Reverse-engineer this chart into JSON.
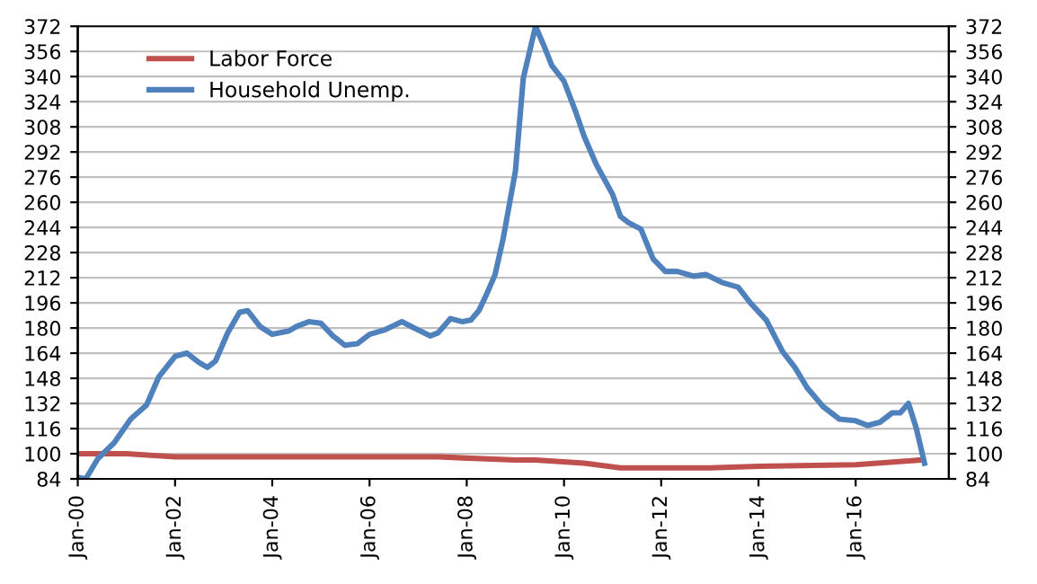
{
  "chart_data": {
    "type": "line",
    "xlim": [
      "2000-01",
      "2017-12"
    ],
    "xticks": [
      {
        "value": "2000-01",
        "label": "Jan-00"
      },
      {
        "value": "2002-01",
        "label": "Jan-02"
      },
      {
        "value": "2004-01",
        "label": "Jan-04"
      },
      {
        "value": "2006-01",
        "label": "Jan-06"
      },
      {
        "value": "2008-01",
        "label": "Jan-08"
      },
      {
        "value": "2010-01",
        "label": "Jan-10"
      },
      {
        "value": "2012-01",
        "label": "Jan-12"
      },
      {
        "value": "2014-01",
        "label": "Jan-14"
      },
      {
        "value": "2016-01",
        "label": "Jan-16"
      }
    ],
    "ylim": [
      84,
      372
    ],
    "yticks": [
      84,
      100,
      116,
      132,
      148,
      164,
      180,
      196,
      212,
      228,
      244,
      260,
      276,
      292,
      308,
      324,
      340,
      356,
      372
    ],
    "y2lim": [
      84,
      372
    ],
    "y2ticks": [
      84,
      100,
      116,
      132,
      148,
      164,
      180,
      196,
      212,
      228,
      244,
      260,
      276,
      292,
      308,
      324,
      340,
      356,
      372
    ],
    "grid": "y",
    "legend": "top left",
    "line_style": "solid",
    "marker": "none",
    "series": [
      {
        "name": "Labor Force",
        "color": "#c0504d",
        "x": [
          "2000-01",
          "2001-01",
          "2002-01",
          "2004-01",
          "2006-01",
          "2007-06",
          "2009-01",
          "2009-06",
          "2010-06",
          "2011-03",
          "2013-01",
          "2014-01",
          "2016-01",
          "2017-05"
        ],
        "values": [
          100,
          100,
          98,
          98,
          98,
          98,
          96,
          96,
          94,
          91,
          91,
          92,
          93,
          96
        ]
      },
      {
        "name": "Household Unemp.",
        "color": "#4f81bd",
        "x": [
          "2000-01",
          "2000-03",
          "2000-06",
          "2000-10",
          "2001-02",
          "2001-06",
          "2001-09",
          "2002-01",
          "2002-04",
          "2002-07",
          "2002-09",
          "2002-11",
          "2003-02",
          "2003-05",
          "2003-07",
          "2003-10",
          "2004-01",
          "2004-05",
          "2004-07",
          "2004-10",
          "2005-01",
          "2005-04",
          "2005-07",
          "2005-10",
          "2006-01",
          "2006-05",
          "2006-09",
          "2006-12",
          "2007-04",
          "2007-06",
          "2007-09",
          "2007-12",
          "2008-02",
          "2008-04",
          "2008-06",
          "2008-08",
          "2008-10",
          "2009-01",
          "2009-03",
          "2009-06",
          "2009-08",
          "2009-10",
          "2010-01",
          "2010-04",
          "2010-06",
          "2010-09",
          "2011-01",
          "2011-03",
          "2011-05",
          "2011-08",
          "2011-11",
          "2012-02",
          "2012-05",
          "2012-09",
          "2012-12",
          "2013-04",
          "2013-08",
          "2013-11",
          "2014-03",
          "2014-07",
          "2014-10",
          "2015-01",
          "2015-05",
          "2015-09",
          "2016-01",
          "2016-04",
          "2016-07",
          "2016-10",
          "2016-12",
          "2017-02",
          "2017-04",
          "2017-06"
        ],
        "values": [
          85,
          84,
          97,
          107,
          122,
          131,
          149,
          162,
          164,
          158,
          155,
          159,
          177,
          190,
          191,
          181,
          176,
          178,
          181,
          184,
          183,
          175,
          169,
          170,
          176,
          179,
          184,
          180,
          175,
          177,
          186,
          184,
          185,
          191,
          202,
          214,
          237,
          280,
          339,
          372,
          360,
          347,
          337,
          317,
          302,
          284,
          265,
          251,
          247,
          243,
          224,
          216,
          216,
          213,
          214,
          209,
          206,
          196,
          185,
          165,
          155,
          142,
          130,
          122,
          121,
          118,
          120,
          126,
          126,
          132,
          116,
          94
        ]
      }
    ]
  }
}
